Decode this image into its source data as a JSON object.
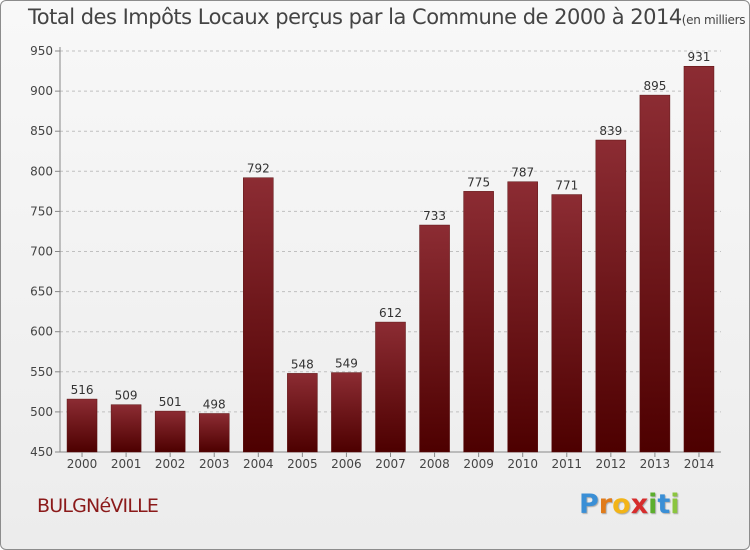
{
  "title": "Total des Impôts Locaux perçus par la Commune de 2000 à 2014",
  "unit": "(en milliers d'€)",
  "commune": "BULGNéVILLE",
  "logo": {
    "letters": [
      "P",
      "r",
      "o",
      "x",
      "i",
      "t",
      "i"
    ],
    "colors": [
      "#3a8fd6",
      "#e07b1a",
      "#f2b417",
      "#d62c2c",
      "#5cae2e",
      "#3a8fd6",
      "#8bc53f"
    ]
  },
  "colors": {
    "bar_top": "#8c2c33",
    "bar_bottom": "#4d0000",
    "grid": "#c0c0c0"
  },
  "chart_data": {
    "type": "bar",
    "title": "Total des Impôts Locaux perçus par la Commune de 2000 à 2014",
    "xlabel": "",
    "ylabel": "",
    "categories": [
      "2000",
      "2001",
      "2002",
      "2003",
      "2004",
      "2005",
      "2006",
      "2007",
      "2008",
      "2009",
      "2010",
      "2011",
      "2012",
      "2013",
      "2014"
    ],
    "values": [
      516,
      509,
      501,
      498,
      792,
      548,
      549,
      612,
      733,
      775,
      787,
      771,
      839,
      895,
      931
    ],
    "ylim": [
      450,
      950
    ],
    "yticks": [
      450,
      500,
      550,
      600,
      650,
      700,
      750,
      800,
      850,
      900,
      950
    ],
    "grid": true,
    "data_labels": true
  }
}
